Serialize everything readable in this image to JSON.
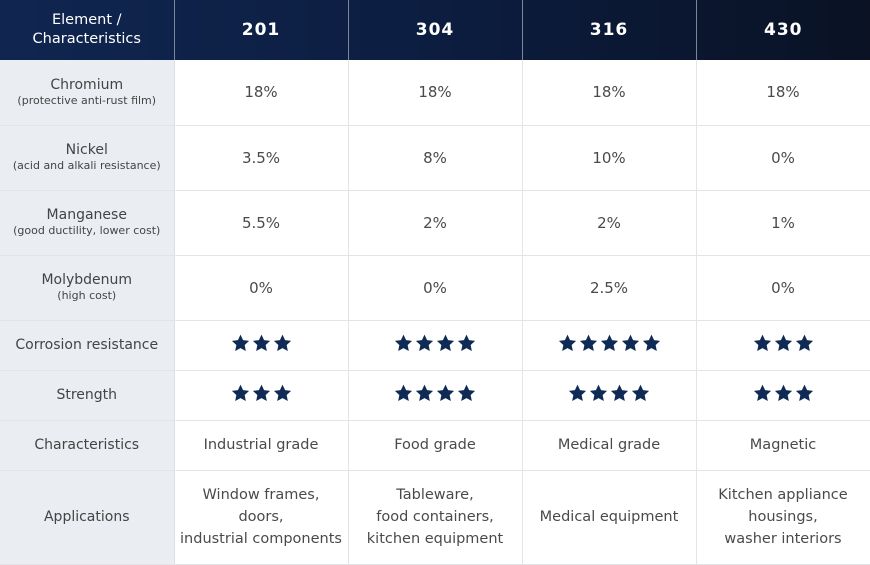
{
  "table": {
    "corner_label_line1": "Element /",
    "corner_label_line2": "Characteristics",
    "grades": [
      "201",
      "304",
      "316",
      "430"
    ],
    "element_rows": [
      {
        "name": "Chromium",
        "note": "(protective anti-rust film)",
        "values": [
          "18%",
          "18%",
          "18%",
          "18%"
        ]
      },
      {
        "name": "Nickel",
        "note": "(acid and alkali resistance)",
        "values": [
          "3.5%",
          "8%",
          "10%",
          "0%"
        ]
      },
      {
        "name": "Manganese",
        "note": "(good ductility, lower cost)",
        "values": [
          "5.5%",
          "2%",
          "2%",
          "1%"
        ]
      },
      {
        "name": "Molybdenum",
        "note": "(high cost)",
        "values": [
          "0%",
          "0%",
          "2.5%",
          "0%"
        ]
      }
    ],
    "rating_rows": [
      {
        "name": "Corrosion resistance",
        "stars": [
          3,
          4,
          5,
          3
        ]
      },
      {
        "name": "Strength",
        "stars": [
          3,
          4,
          4,
          3
        ]
      }
    ],
    "characteristics_row": {
      "name": "Characteristics",
      "values": [
        "Industrial grade",
        "Food grade",
        "Medical grade",
        "Magnetic"
      ]
    },
    "applications_row": {
      "name": "Applications",
      "values": [
        [
          "Window frames,",
          "doors,",
          "industrial components"
        ],
        [
          "Tableware,",
          "food containers,",
          "kitchen equipment"
        ],
        [
          "Medical equipment"
        ],
        [
          "Kitchen appliance",
          "housings,",
          "washer interiors"
        ]
      ]
    }
  },
  "colors": {
    "header_start": "#102650",
    "header_end": "#0a1224",
    "star": "#0f2a55",
    "rowhead_bg": "#eaedf1"
  },
  "icons": {
    "rating": "star-icon"
  }
}
